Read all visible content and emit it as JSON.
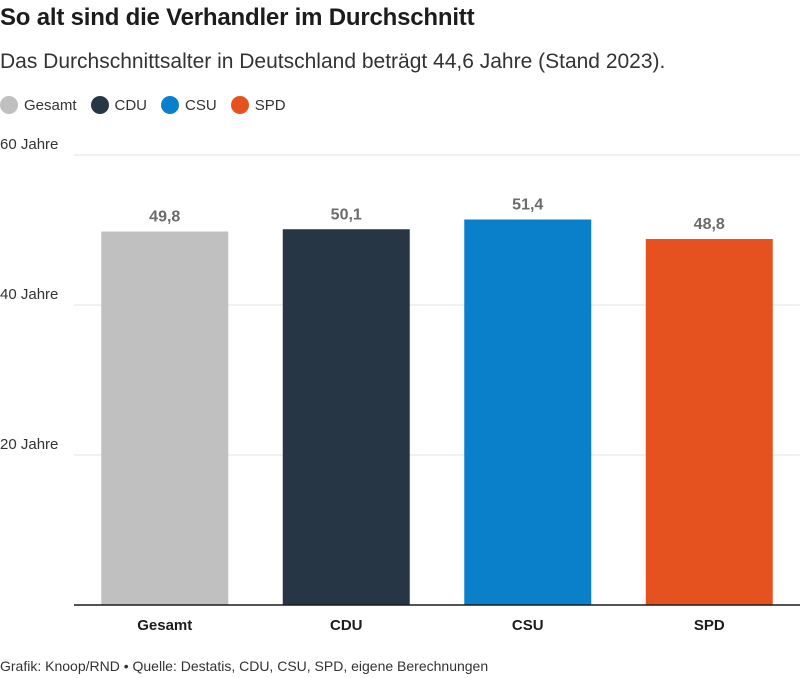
{
  "header": {
    "title": "So alt sind die Verhandler im Durchschnitt",
    "subtitle": "Das Durchschnittsalter in Deutschland beträgt 44,6 Jahre (Stand 2023)."
  },
  "legend": [
    {
      "label": "Gesamt",
      "color": "#c0c0c0"
    },
    {
      "label": "CDU",
      "color": "#263644"
    },
    {
      "label": "CSU",
      "color": "#0a80ca"
    },
    {
      "label": "SPD",
      "color": "#e5521f"
    }
  ],
  "chart_data": {
    "type": "bar",
    "categories": [
      "Gesamt",
      "CDU",
      "CSU",
      "SPD"
    ],
    "values": [
      49.8,
      50.1,
      51.4,
      48.8
    ],
    "value_labels": [
      "49,8",
      "50,1",
      "51,4",
      "48,8"
    ],
    "colors": [
      "#c0c0c0",
      "#263644",
      "#0a80ca",
      "#e5521f"
    ],
    "ylim": [
      0,
      60
    ],
    "yticks": [
      {
        "value": 20,
        "label": "20 Jahre"
      },
      {
        "value": 40,
        "label": "40 Jahre"
      },
      {
        "value": 60,
        "label": "60 Jahre"
      }
    ],
    "grid": true,
    "legend_position": "top-left"
  },
  "footer": {
    "text": "Grafik: Knoop/RND • Quelle: Destatis, CDU, CSU, SPD, eigene Berechnungen"
  }
}
